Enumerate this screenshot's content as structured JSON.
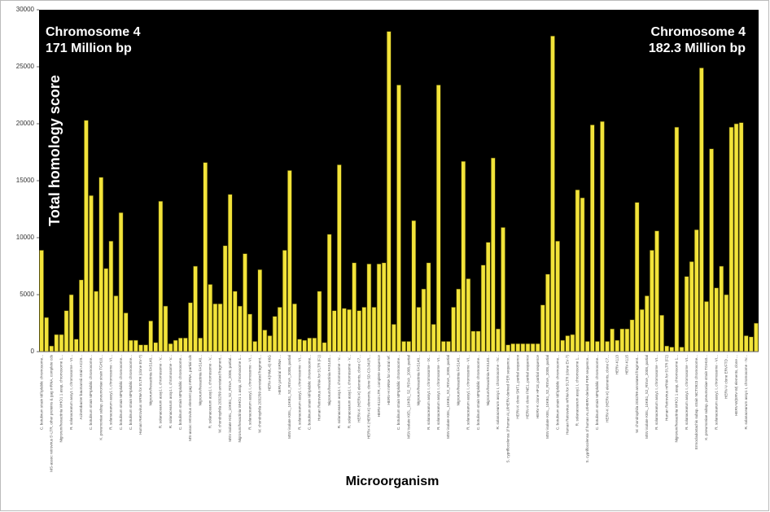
{
  "chart_data": {
    "type": "bar",
    "xlabel": "Microorganism",
    "ylabel": "Total homology score",
    "annotations": [
      "Chromosome 4",
      "171 Million bp",
      "Chromosome 4",
      "182.3 Million bp"
    ],
    "color": "#f2e33a",
    "background": "#000000",
    "ylim": [
      0,
      30000
    ],
    "yticks": [
      0,
      5000,
      10000,
      15000,
      20000,
      25000,
      30000
    ],
    "grid": false,
    "categories": [
      "C. botulinum strain MFIplublic chromosome...",
      null,
      "MS-assoc retrovirus 5'-LTR, other proteins & gag mRNA, complete cds",
      null,
      "Nigrorum/hexactinia WHO1 1 assp, chromosome 1...",
      null,
      "R. solanacearum assy1 I, chromosome - VI...",
      null,
      "Acinetobacter baumannii strain AC29...",
      null,
      "C. botulinum strain MFIplublic chromosome...",
      null,
      "K. pneumoniae subsp. pneumoniae strain TGH10...",
      null,
      "R. solanacearum assy1 I, chromosome - VI...",
      null,
      "C. botulinum strain MFIplublic chromosome...",
      null,
      "C. botulinum strain MFIplublic chromosome...",
      null,
      "Human Retrovirus mRNA for 5'LTR (clone EV-7)",
      null,
      "Nigrorum/hexactinia FAS140...",
      null,
      "R. solanacearum assy1 I, chromosome - V...",
      null,
      "R. solanacearum assy1 I, chromosome - V...",
      null,
      "C. botulinum strain MFIplublic chromosome...",
      null,
      "MS-assoc retrovirus element gag mRNA, partial cds",
      null,
      "Nigrorum/hexactinia FAS140...",
      null,
      "R. solanacearum assy1 I, chromosome - V...",
      null,
      "W. chondrophila 2032/99 annotated fragment...",
      null,
      "MSV isolate KIEL_10KB1_S2_RSVA_2008, partial...",
      null,
      "Nigrorum/hexactinia WHO1 1 assp, chromosome 1...",
      null,
      "R. solanacearum assy1 I, chromosome - VI...",
      null,
      "W. chondrophila 2032/99 annotated fragment...",
      null,
      "HERV-K(HML-6) K6G",
      null,
      "HERV proviral mRNA ...",
      null,
      "MSV isolate KIEL_10KB1_S2_RSVA_2008, partial",
      null,
      "R. solanacearum assy1 I, chromosome - VI...",
      null,
      "C. botulinum strain MFIplublic chromosome...",
      null,
      "Human Retrovirus mRNA for 5'LTR (F1)",
      null,
      "Nigrorum/hexactinia FAS140...",
      null,
      "R. solanacearum assy1 I, chromosome - V...",
      null,
      "R. solanacearum assy1 I, chromosome - V...",
      null,
      "HERV-K (HERV-K) elements, clone C7...",
      null,
      "HERV-K (HERV-K) elements, clone SD-C3-341R...",
      null,
      "HERV-K113 LTR, complete sequence",
      null,
      "HERV-H mRNA for central ref.",
      null,
      "C. botulinum strain MFIplublic chromosome...",
      null,
      "MSV isolate KIEL_10KB1_S2_RSVA_2008, partial",
      null,
      "Nigrorum/hexactinia FAS140...",
      null,
      "R. solanacearum assy1 I, chromosome - IX...",
      null,
      "R. solanacearum assy1 I, chromosome - VI...",
      null,
      "MSV isolate KIEL_10KB1_S2_RSVA_2008, partial",
      null,
      "Nigrorum/hexactinia FAS140...",
      null,
      "R. solanacearum assy1 I, chromosome - VI...",
      null,
      "C. botulinum strain MFIplublic chromosome...",
      null,
      "Nigrorum/hexactinia FAS140...",
      null,
      "R. solanacearum assy1 I, chromosome - IV...",
      null,
      "S. cypriflocolensa 1f human ALU/HERV-derived PER sequence...",
      null,
      "HERV-K clone SNT1, partial sequence",
      null,
      "HERV-K clone FNE1, partial sequence",
      null,
      "HERV-K clone HF18, partial sequence",
      null,
      "MSV isolate KIEL_10KB1_S2_RSVA_2008, partial",
      null,
      "C. botulinum strain MFIplublic chromosome...",
      null,
      "Human Retrovirus mRNA for 5'LTR (clone EV-7)",
      null,
      "R. solanacearum assy1 I, chromosome 1...",
      null,
      "S. cypriflocolensa 1f human ALU/HERV-derived PER sequence...",
      null,
      "C. botulinum strain MFIplublic chromosome...",
      null,
      "HERV-K (HERV-K) elements, clone C7...",
      null,
      "HERV-K113",
      null,
      "HERV-K115",
      null,
      "W. chondrophila 2032/99 annotated fragment...",
      null,
      "MSV isolate KIEL_10KB1_S2_RSVA_2008, partial",
      null,
      "R. solanacearum assy1 I, chromosome - VI...",
      null,
      "Human Retrovirus mRNA for 5'LTR (F2)",
      null,
      "Nigrorum/hexactinia WHO1 1 assp, chromosome 1...",
      null,
      "R. solanacearum assy1 I, chromosome - VI...",
      null,
      "Ermocladostachis subsp. strain NCT0923 chromosome...",
      null,
      "K. pneumoniae subsp. pneumoniae strain TGH10...",
      null,
      "R. solanacearum assy1 I, chromosome - VI...",
      null,
      "HERV-V clone ERVFTD ...",
      null,
      "HERV-W(ERV-W) elements, clone ...",
      null,
      "R. solanacearum assy1 I, chromosome - IV...",
      null,
      null
    ],
    "values": [
      8900,
      3000,
      500,
      1500,
      1500,
      3600,
      5000,
      1100,
      6300,
      20300,
      13700,
      5300,
      15300,
      7300,
      9700,
      4900,
      12200,
      3400,
      1000,
      1000,
      600,
      600,
      2700,
      800,
      13200,
      4000,
      700,
      1000,
      1200,
      1200,
      4300,
      7500,
      1200,
      16600,
      5900,
      4200,
      4200,
      9300,
      13800,
      5300,
      4000,
      8600,
      3300,
      900,
      7200,
      1900,
      1400,
      3100,
      3900,
      8900,
      15900,
      4200,
      1100,
      1000,
      1200,
      1200,
      5300,
      800,
      10300,
      3600,
      16400,
      3800,
      3700,
      7800,
      3600,
      3900,
      7700,
      3900,
      7700,
      7800,
      28100,
      2400,
      23400,
      900,
      900,
      11500,
      3900,
      5500,
      7800,
      2400,
      23400,
      900,
      900,
      3900,
      5500,
      16700,
      6400,
      1800,
      1800,
      7600,
      9600,
      17000,
      2000,
      10900,
      600,
      700,
      700,
      700,
      700,
      700,
      700,
      4100,
      6800,
      27700,
      9700,
      1000,
      1400,
      1500,
      14200,
      13500,
      900,
      19900,
      900,
      20200,
      900,
      2000,
      1000,
      2000,
      2000,
      2800,
      13100,
      3700,
      4900,
      8900,
      10600,
      3200,
      500,
      400,
      19700,
      400,
      6600,
      7900,
      10700,
      24900,
      4400,
      17800,
      5600,
      7500,
      5000,
      19700,
      20000,
      20100,
      1400,
      1300,
      2500
    ]
  }
}
